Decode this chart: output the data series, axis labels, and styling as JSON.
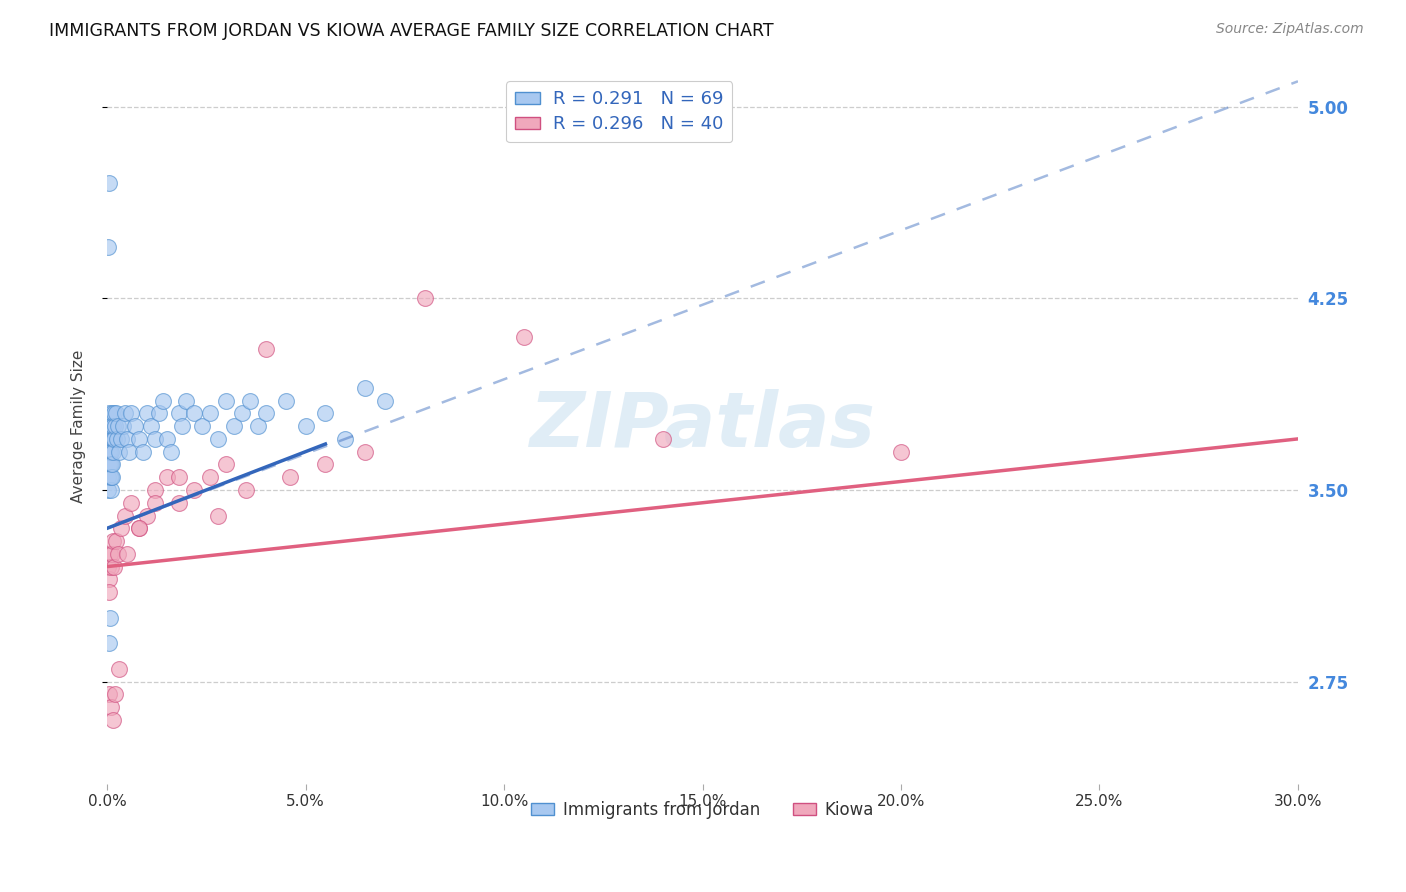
{
  "title": "IMMIGRANTS FROM JORDAN VS KIOWA AVERAGE FAMILY SIZE CORRELATION CHART",
  "source": "Source: ZipAtlas.com",
  "ylabel": "Average Family Size",
  "xmin": 0.0,
  "xmax": 30.0,
  "ymin": 2.35,
  "ymax": 5.15,
  "yticks_right": [
    2.75,
    3.5,
    4.25,
    5.0
  ],
  "grid_color": "#c8c8c8",
  "background_color": "#ffffff",
  "jordan_color": "#a8c8f0",
  "jordan_edge_color": "#5090d0",
  "jordan_line_color": "#3366bb",
  "kiowa_color": "#f0a8bc",
  "kiowa_edge_color": "#d05080",
  "kiowa_line_color": "#e06080",
  "watermark_color": "#c8dff0",
  "jordan_R": 0.291,
  "jordan_N": 69,
  "kiowa_R": 0.296,
  "kiowa_N": 40,
  "jordan_x": [
    0.02,
    0.03,
    0.04,
    0.05,
    0.05,
    0.06,
    0.06,
    0.07,
    0.07,
    0.08,
    0.08,
    0.09,
    0.09,
    0.1,
    0.1,
    0.11,
    0.11,
    0.12,
    0.12,
    0.13,
    0.14,
    0.15,
    0.16,
    0.17,
    0.18,
    0.2,
    0.22,
    0.25,
    0.28,
    0.3,
    0.35,
    0.4,
    0.45,
    0.5,
    0.55,
    0.6,
    0.7,
    0.8,
    0.9,
    1.0,
    1.1,
    1.2,
    1.3,
    1.4,
    1.5,
    1.6,
    1.8,
    1.9,
    2.0,
    2.2,
    2.4,
    2.6,
    2.8,
    3.0,
    3.2,
    3.4,
    3.6,
    3.8,
    4.0,
    4.5,
    5.0,
    5.5,
    6.0,
    6.5,
    7.0,
    0.03,
    0.04,
    0.06,
    0.08
  ],
  "jordan_y": [
    3.5,
    3.55,
    3.6,
    3.7,
    3.8,
    3.65,
    3.75,
    3.55,
    3.6,
    3.7,
    3.65,
    3.5,
    3.55,
    3.6,
    3.7,
    3.65,
    3.75,
    3.55,
    3.6,
    3.8,
    3.7,
    3.65,
    3.75,
    3.8,
    3.7,
    3.75,
    3.8,
    3.7,
    3.75,
    3.65,
    3.7,
    3.75,
    3.8,
    3.7,
    3.65,
    3.8,
    3.75,
    3.7,
    3.65,
    3.8,
    3.75,
    3.7,
    3.8,
    3.85,
    3.7,
    3.65,
    3.8,
    3.75,
    3.85,
    3.8,
    3.75,
    3.8,
    3.7,
    3.85,
    3.75,
    3.8,
    3.85,
    3.75,
    3.8,
    3.85,
    3.75,
    3.8,
    3.7,
    3.9,
    3.85,
    4.45,
    4.7,
    2.9,
    3.0
  ],
  "kiowa_x": [
    0.02,
    0.04,
    0.06,
    0.08,
    0.1,
    0.12,
    0.15,
    0.18,
    0.22,
    0.28,
    0.35,
    0.45,
    0.6,
    0.8,
    1.0,
    1.2,
    1.5,
    1.8,
    2.2,
    2.6,
    3.0,
    3.5,
    4.0,
    4.6,
    5.5,
    6.5,
    8.0,
    10.5,
    14.0,
    20.0,
    0.06,
    0.09,
    0.14,
    0.2,
    0.3,
    0.5,
    0.8,
    1.2,
    1.8,
    2.8
  ],
  "kiowa_y": [
    3.2,
    3.15,
    3.1,
    3.25,
    3.2,
    3.25,
    3.3,
    3.2,
    3.3,
    3.25,
    3.35,
    3.4,
    3.45,
    3.35,
    3.4,
    3.5,
    3.55,
    3.45,
    3.5,
    3.55,
    3.6,
    3.5,
    4.05,
    3.55,
    3.6,
    3.65,
    4.25,
    4.1,
    3.7,
    3.65,
    2.7,
    2.65,
    2.6,
    2.7,
    2.8,
    3.25,
    3.35,
    3.45,
    3.55,
    3.4
  ],
  "jordan_line_x0": 0.0,
  "jordan_line_x1": 5.5,
  "jordan_dash_x0": 0.0,
  "jordan_dash_x1": 30.0,
  "jordan_line_y_at_x0": 3.35,
  "jordan_line_y_at_x1": 3.68,
  "jordan_dash_y_at_x0": 3.35,
  "jordan_dash_y_at_x1": 5.1,
  "kiowa_line_y_at_x0": 3.2,
  "kiowa_line_y_at_x1": 3.7
}
